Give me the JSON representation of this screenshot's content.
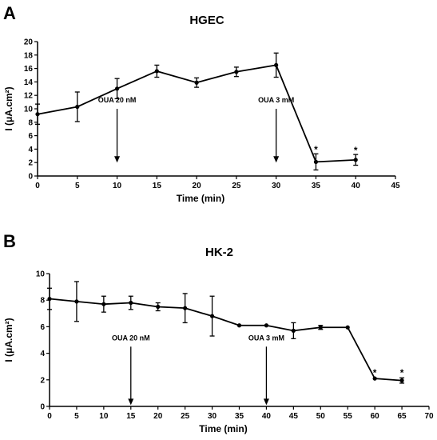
{
  "chart_data": [
    {
      "panel": "A",
      "type": "line",
      "title": "HGEC",
      "xlabel": "Time (min)",
      "ylabel": "I (μA.cm²)",
      "xlim": [
        0,
        45
      ],
      "ylim": [
        0,
        20
      ],
      "xticks": [
        0,
        5,
        10,
        15,
        20,
        25,
        30,
        35,
        40,
        45
      ],
      "yticks": [
        0,
        2,
        4,
        6,
        8,
        10,
        12,
        14,
        16,
        18,
        20
      ],
      "x": [
        0,
        5,
        10,
        15,
        20,
        25,
        30,
        35,
        40
      ],
      "series": [
        {
          "values": [
            9.2,
            10.3,
            13.0,
            15.6,
            13.9,
            15.5,
            16.5,
            2.1,
            2.4
          ],
          "errors": [
            1.5,
            2.2,
            1.5,
            0.9,
            0.7,
            0.7,
            1.8,
            1.2,
            0.8
          ]
        }
      ],
      "annotations": [
        {
          "text": "OUA 20 nM",
          "x": 10,
          "y_top": 10,
          "y_bottom": 2
        },
        {
          "text": "OUA 3 mM",
          "x": 30,
          "y_top": 10,
          "y_bottom": 2
        }
      ],
      "significance": [
        {
          "text": "*",
          "x": 35,
          "y": 3.7
        },
        {
          "text": "*",
          "x": 40,
          "y": 3.6
        }
      ],
      "grid": false
    },
    {
      "panel": "B",
      "type": "line",
      "title": "HK-2",
      "xlabel": "Time (min)",
      "ylabel": "I (μA.cm²)",
      "xlim": [
        0,
        70
      ],
      "ylim": [
        0,
        10
      ],
      "xticks": [
        0,
        5,
        10,
        15,
        20,
        25,
        30,
        35,
        40,
        45,
        50,
        55,
        60,
        65,
        70
      ],
      "yticks": [
        0,
        2,
        4,
        6,
        8,
        10
      ],
      "x": [
        0,
        5,
        10,
        15,
        20,
        25,
        30,
        35,
        40,
        45,
        50,
        55,
        60,
        65
      ],
      "series": [
        {
          "values": [
            8.1,
            7.9,
            7.7,
            7.8,
            7.5,
            7.4,
            6.8,
            6.1,
            6.1,
            5.7,
            5.95,
            5.95,
            2.1,
            1.95
          ],
          "errors": [
            0.8,
            1.5,
            0.6,
            0.5,
            0.3,
            1.1,
            1.5,
            0.0,
            0.0,
            0.6,
            0.15,
            0.0,
            0.0,
            0.2
          ]
        }
      ],
      "annotations": [
        {
          "text": "OUA 20 nM",
          "x": 15,
          "y_top": 4.5,
          "y_bottom": 0.1
        },
        {
          "text": "OUA 3 mM",
          "x": 40,
          "y_top": 4.5,
          "y_bottom": 0.1
        }
      ],
      "significance": [
        {
          "text": "*",
          "x": 60,
          "y": 2.4
        },
        {
          "text": "*",
          "x": 65,
          "y": 2.4
        }
      ],
      "grid": false
    }
  ]
}
